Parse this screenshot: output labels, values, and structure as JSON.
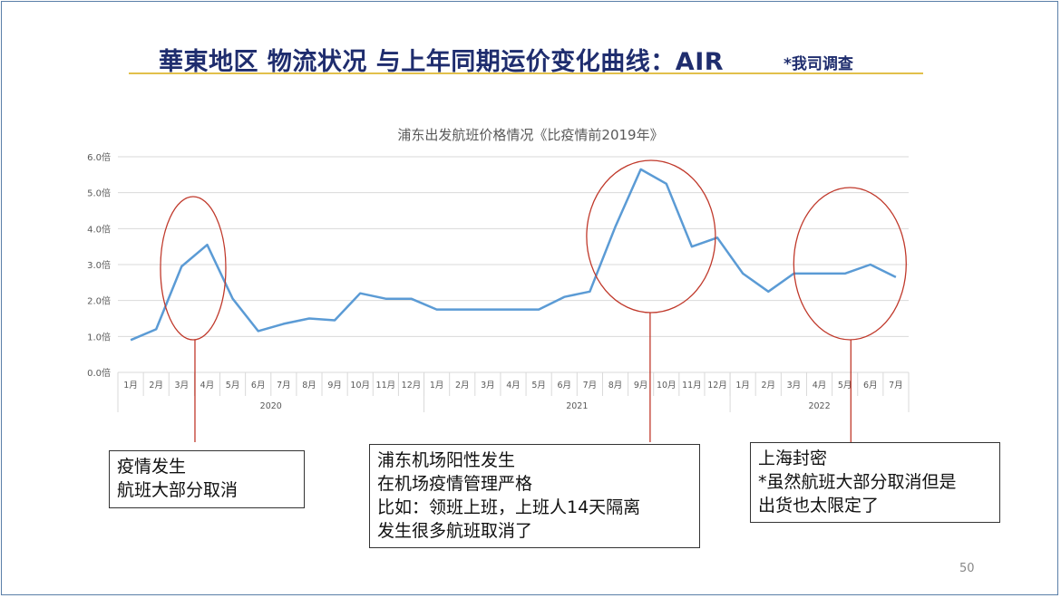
{
  "slide": {
    "title": "華東地区 物流状况 与上年同期运价变化曲线：AIR",
    "subtitle": "*我司调查",
    "page_number": "50"
  },
  "callouts": [
    {
      "lines": [
        "疫情发生",
        "航班大部分取消"
      ]
    },
    {
      "lines": [
        "浦东机场阳性发生",
        "在机场疫情管理严格",
        "比如：领班上班，上班人14天隔离",
        "发生很多航班取消了"
      ]
    },
    {
      "lines": [
        "上海封密",
        "*虽然航班大部分取消但是",
        "出货也太限定了"
      ]
    }
  ],
  "colors": {
    "line": "#5b9bd5",
    "circle": "#c0392b",
    "grid": "#d9d9d9",
    "title": "#1f2d6e",
    "rule": "#e2c04a"
  },
  "chart_data": {
    "type": "line",
    "title": "浦东出发航班价格情况《比疫情前2019年》",
    "ylim": [
      0,
      6
    ],
    "y_ticks": [
      "0.0倍",
      "1.0倍",
      "2.0倍",
      "3.0倍",
      "4.0倍",
      "5.0倍",
      "6.0倍"
    ],
    "categories": [
      "1月",
      "2月",
      "3月",
      "4月",
      "5月",
      "6月",
      "7月",
      "8月",
      "9月",
      "10月",
      "11月",
      "12月",
      "1月",
      "2月",
      "3月",
      "4月",
      "5月",
      "6月",
      "7月",
      "8月",
      "9月",
      "10月",
      "11月",
      "12月",
      "1月",
      "2月",
      "3月",
      "4月",
      "5月",
      "6月",
      "7月"
    ],
    "year_groups": [
      {
        "label": "2020",
        "count": 12
      },
      {
        "label": "2021",
        "count": 12
      },
      {
        "label": "2022",
        "count": 7
      }
    ],
    "series": [
      {
        "values": [
          0.9,
          1.2,
          2.95,
          3.55,
          2.05,
          1.15,
          1.35,
          1.5,
          1.45,
          2.2,
          2.05,
          2.05,
          1.75,
          1.75,
          1.75,
          1.75,
          1.75,
          2.1,
          2.25,
          4.05,
          5.65,
          5.25,
          3.5,
          3.75,
          2.75,
          2.25,
          2.75,
          2.75,
          2.75,
          3.0,
          2.65
        ]
      }
    ],
    "grid": true,
    "legend": "none"
  }
}
